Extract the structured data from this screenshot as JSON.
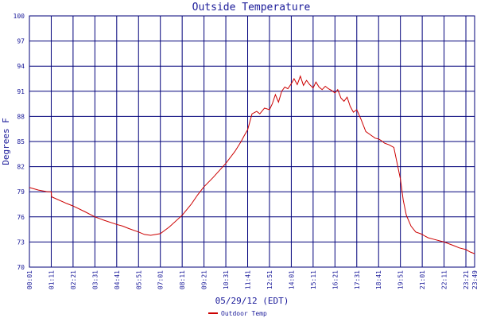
{
  "chart_data": {
    "type": "line",
    "title": "Outside Temperature",
    "xlabel": "05/29/12 (EDT)",
    "ylabel": "Degrees F",
    "ylim": [
      70,
      100
    ],
    "yticks": [
      70,
      73,
      76,
      79,
      82,
      85,
      88,
      91,
      94,
      97,
      100
    ],
    "xticks": [
      "00:01",
      "01:11",
      "02:21",
      "03:31",
      "04:41",
      "05:51",
      "07:01",
      "08:11",
      "09:21",
      "10:31",
      "11:41",
      "12:51",
      "14:01",
      "15:11",
      "16:21",
      "17:31",
      "18:41",
      "19:51",
      "21:01",
      "22:11",
      "23:21",
      "23:49"
    ],
    "grid": true,
    "legend_position": "bottom-left",
    "series": [
      {
        "name": "Outdoor Temp",
        "color": "#cc0000",
        "x": [
          "00:01",
          "00:30",
          "01:00",
          "01:11",
          "01:12",
          "02:00",
          "02:21",
          "03:00",
          "03:31",
          "04:00",
          "04:41",
          "05:00",
          "05:20",
          "05:51",
          "06:10",
          "06:30",
          "07:01",
          "07:30",
          "08:11",
          "08:40",
          "09:00",
          "09:21",
          "09:50",
          "10:31",
          "11:00",
          "11:20",
          "11:30",
          "11:41",
          "11:55",
          "12:10",
          "12:20",
          "12:35",
          "12:51",
          "13:00",
          "13:10",
          "13:20",
          "13:30",
          "13:40",
          "13:50",
          "14:01",
          "14:10",
          "14:20",
          "14:30",
          "14:40",
          "14:50",
          "15:00",
          "15:11",
          "15:20",
          "15:30",
          "15:40",
          "15:50",
          "16:00",
          "16:10",
          "16:21",
          "16:30",
          "16:40",
          "16:50",
          "17:00",
          "17:10",
          "17:20",
          "17:31",
          "17:45",
          "18:00",
          "18:15",
          "18:30",
          "18:41",
          "18:50",
          "19:00",
          "19:15",
          "19:30",
          "19:51",
          "20:00",
          "20:10",
          "20:25",
          "20:40",
          "20:55",
          "21:01",
          "21:10",
          "21:20",
          "21:40",
          "22:11",
          "22:40",
          "23:00",
          "23:21",
          "23:35",
          "23:49"
        ],
        "y": [
          79.5,
          79.2,
          79.0,
          79.0,
          78.4,
          77.6,
          77.3,
          76.6,
          76.0,
          75.6,
          75.1,
          74.9,
          74.6,
          74.2,
          73.9,
          73.8,
          74.0,
          74.8,
          76.2,
          77.5,
          78.6,
          79.6,
          80.7,
          82.4,
          83.8,
          85.0,
          85.7,
          86.4,
          88.3,
          88.6,
          88.3,
          89.0,
          88.8,
          89.5,
          90.6,
          89.7,
          91.0,
          91.5,
          91.3,
          91.9,
          92.5,
          91.8,
          92.8,
          91.7,
          92.3,
          91.8,
          91.4,
          92.1,
          91.5,
          91.2,
          91.6,
          91.3,
          91.1,
          90.8,
          91.2,
          90.2,
          89.8,
          90.3,
          89.2,
          88.5,
          88.8,
          87.6,
          86.2,
          85.8,
          85.4,
          85.3,
          85.1,
          84.8,
          84.6,
          84.3,
          80.5,
          78.0,
          76.2,
          74.9,
          74.2,
          74.0,
          73.9,
          73.7,
          73.5,
          73.3,
          73.0,
          72.6,
          72.3,
          72.1,
          71.8,
          71.6
        ]
      }
    ]
  }
}
